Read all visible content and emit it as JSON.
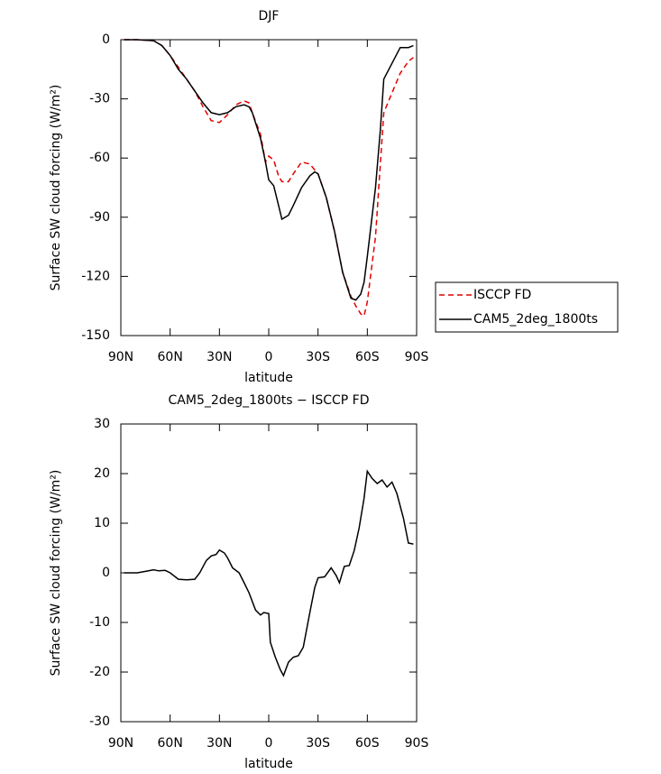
{
  "chart_data": [
    {
      "type": "line",
      "title": "DJF",
      "xlabel": "latitude",
      "ylabel": "Surface SW cloud forcing (W/m²)",
      "x": [
        88,
        80,
        70,
        65,
        60,
        55,
        50,
        45,
        40,
        35,
        30,
        25,
        20,
        15,
        12,
        10,
        5,
        2,
        0,
        -3,
        -6,
        -8,
        -12,
        -15,
        -20,
        -25,
        -28,
        -30,
        -35,
        -40,
        -45,
        -50,
        -53,
        -56,
        -58,
        -60,
        -65,
        -68,
        -70,
        -75,
        -80,
        -85,
        -88
      ],
      "series": [
        {
          "name": "ISCCP FD",
          "color": "#e00000",
          "style": "dashed",
          "values": [
            0,
            0,
            -0.5,
            -3,
            -8,
            -14,
            -20,
            -26,
            -34,
            -41,
            -42,
            -38,
            -33,
            -31,
            -32,
            -37,
            -48,
            -62,
            -59,
            -61,
            -69,
            -72,
            -72,
            -68,
            -62,
            -63,
            -66,
            -68,
            -80,
            -97,
            -118,
            -130,
            -135,
            -139,
            -140,
            -133,
            -100,
            -62,
            -37,
            -27,
            -17,
            -11,
            -9
          ]
        },
        {
          "name": "CAM5_2deg_1800ts",
          "color": "#000000",
          "style": "solid",
          "values": [
            0,
            0,
            -0.5,
            -3,
            -8,
            -15,
            -20,
            -26,
            -32,
            -37,
            -38,
            -37,
            -34,
            -33,
            -34,
            -37,
            -50,
            -62,
            -71,
            -74,
            -84,
            -91,
            -89,
            -84,
            -75,
            -69,
            -67,
            -68,
            -80,
            -97,
            -118,
            -131,
            -132,
            -129,
            -123,
            -110,
            -75,
            -45,
            -20,
            -12,
            -4,
            -4,
            -3
          ]
        }
      ],
      "xlim": [
        90,
        -90
      ],
      "xticks": [
        {
          "value": 90,
          "label": "90N"
        },
        {
          "value": 60,
          "label": "60N"
        },
        {
          "value": 30,
          "label": "30N"
        },
        0,
        {
          "value": -30,
          "label": "30S"
        },
        {
          "value": -60,
          "label": "60S"
        },
        {
          "value": -90,
          "label": "90S"
        }
      ],
      "ylim": [
        -150,
        0
      ],
      "yticks": [
        0,
        -30,
        -60,
        -90,
        -120,
        -150
      ],
      "legend": "right"
    },
    {
      "type": "line",
      "title": "CAM5_2deg_1800ts − ISCCP FD",
      "xlabel": "latitude",
      "ylabel": "Surface SW cloud forcing (W/m²)",
      "x": [
        88,
        80,
        75,
        70,
        67,
        63,
        60,
        55,
        50,
        45,
        42,
        38,
        35,
        32,
        30,
        27,
        25,
        22,
        18,
        15,
        12,
        8,
        5,
        3,
        0,
        -1,
        -4,
        -7,
        -9,
        -12,
        -15,
        -18,
        -21,
        -25,
        -28,
        -30,
        -34,
        -38,
        -41,
        -43,
        -46,
        -49,
        -52,
        -55,
        -58,
        -60,
        -63,
        -66,
        -69,
        -72,
        -75,
        -78,
        -82,
        -85,
        -88
      ],
      "series": [
        {
          "name": "CAM5_2deg_1800ts − ISCCP FD",
          "color": "#000000",
          "style": "solid",
          "values": [
            0,
            0,
            0.3,
            0.6,
            0.4,
            0.5,
            0,
            -1.3,
            -1.4,
            -1.3,
            0,
            2.5,
            3.4,
            3.7,
            4.6,
            4,
            3,
            1,
            0,
            -2,
            -4,
            -7.5,
            -8.5,
            -8,
            -8.2,
            -14,
            -17,
            -19.5,
            -20.7,
            -18,
            -17,
            -16.7,
            -15,
            -8,
            -3,
            -1,
            -0.8,
            1,
            -0.5,
            -2,
            1.3,
            1.5,
            4.5,
            9,
            15,
            20.5,
            19,
            18,
            18.7,
            17.3,
            18.3,
            16,
            11,
            6,
            5.8
          ]
        }
      ],
      "xlim": [
        90,
        -90
      ],
      "xticks": [
        {
          "value": 90,
          "label": "90N"
        },
        {
          "value": 60,
          "label": "60N"
        },
        {
          "value": 30,
          "label": "30N"
        },
        0,
        {
          "value": -30,
          "label": "30S"
        },
        {
          "value": -60,
          "label": "60S"
        },
        {
          "value": -90,
          "label": "90S"
        }
      ],
      "ylim": [
        -30,
        30
      ],
      "yticks": [
        30,
        20,
        10,
        0,
        -10,
        -20,
        -30
      ]
    }
  ]
}
